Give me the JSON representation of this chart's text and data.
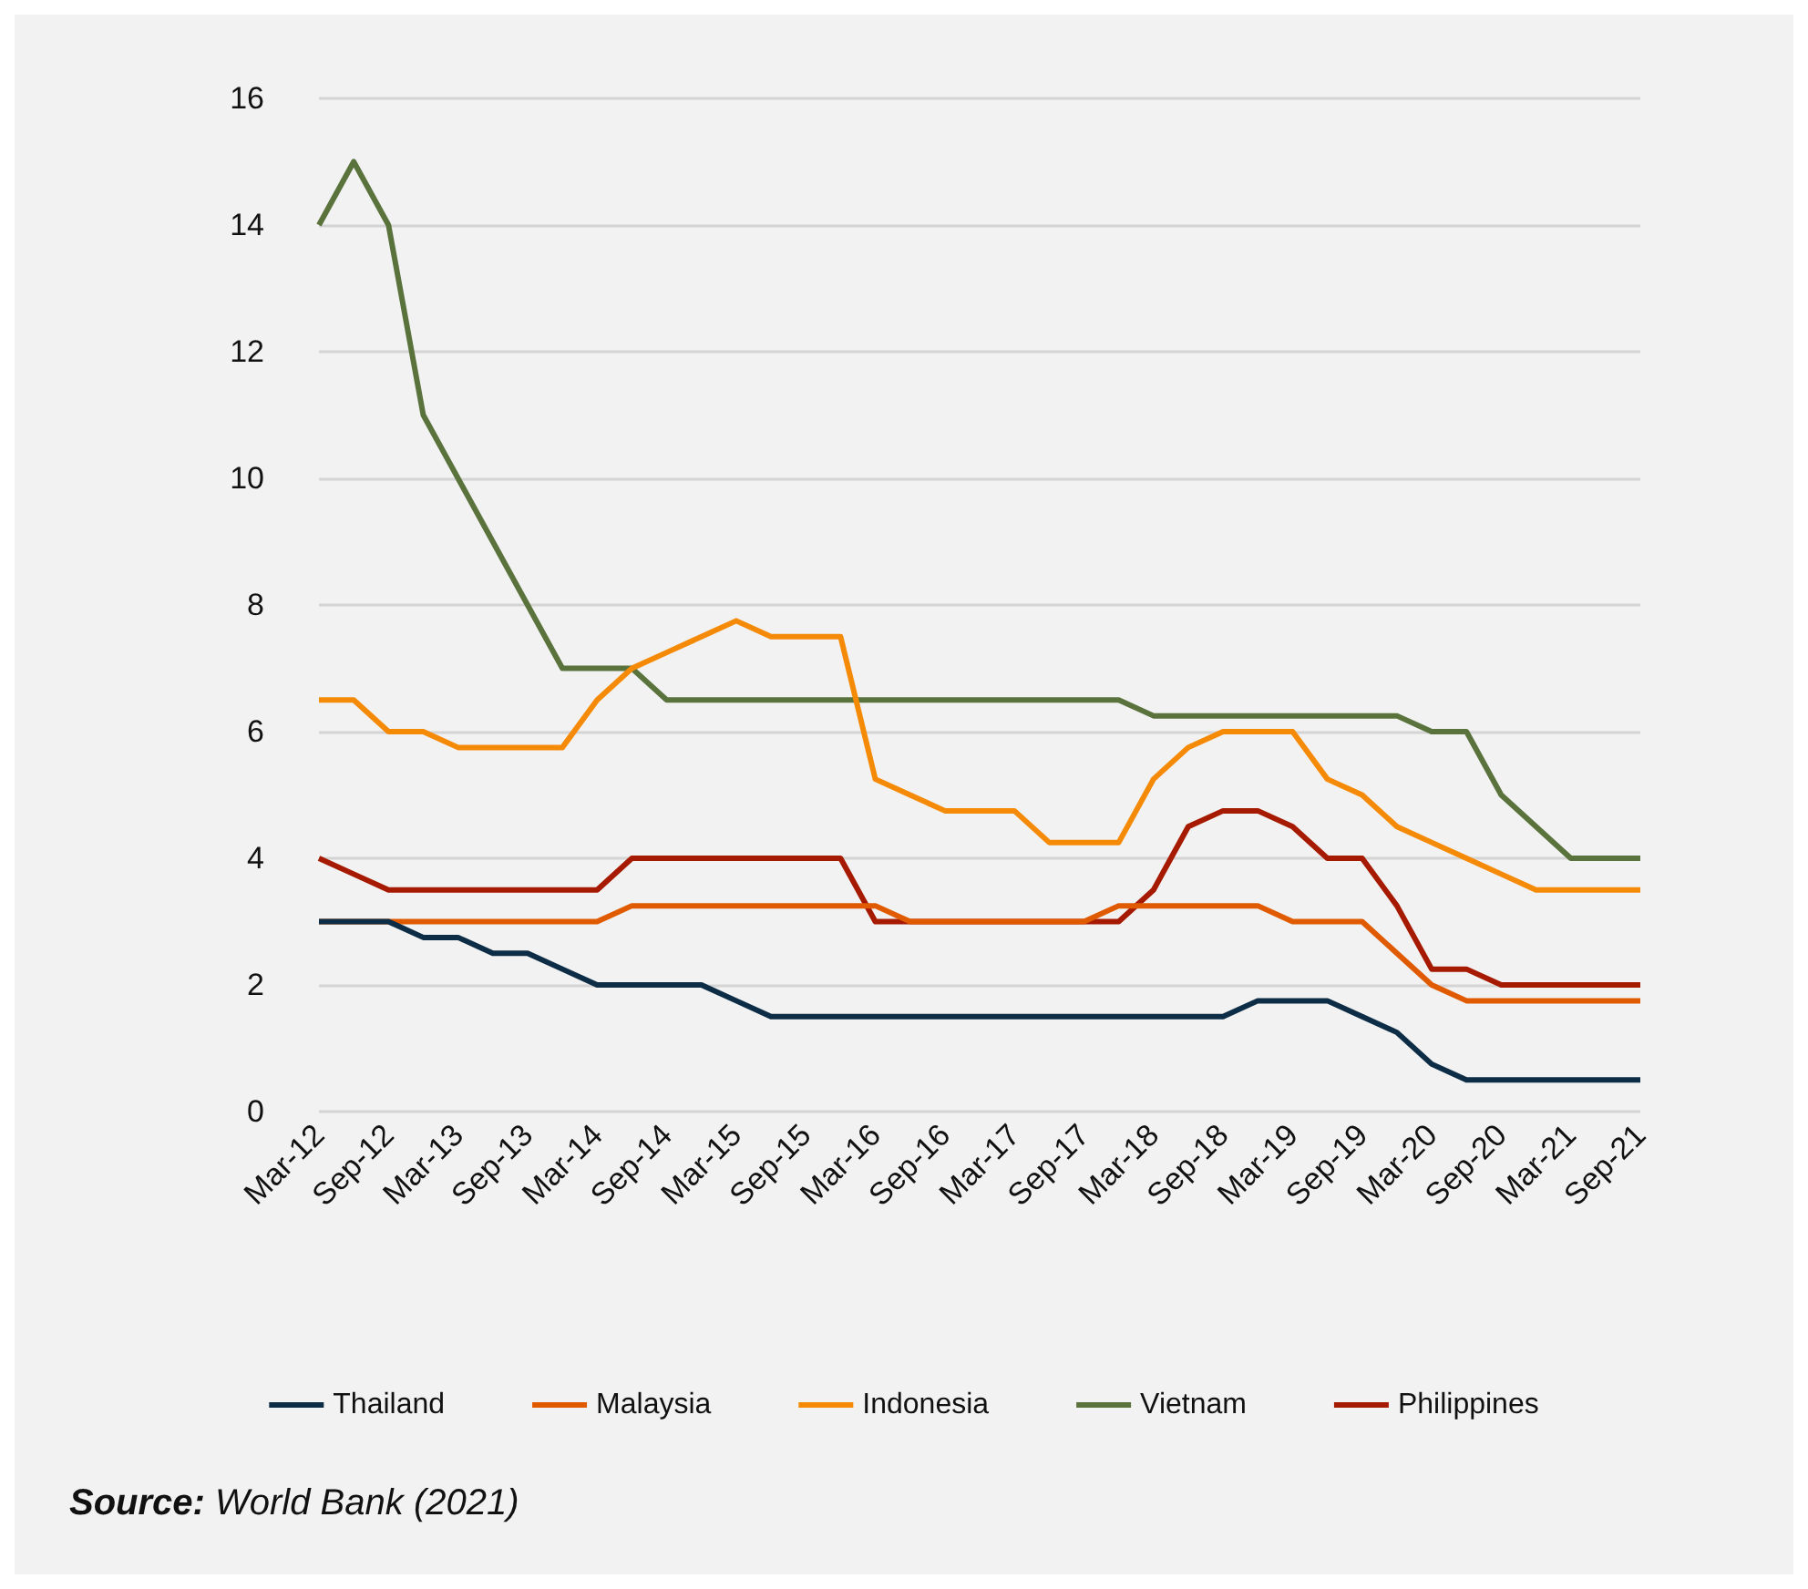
{
  "chart_data": {
    "type": "line",
    "categories": [
      "Mar-12",
      null,
      "Sep-12",
      null,
      "Mar-13",
      null,
      "Sep-13",
      null,
      "Mar-14",
      null,
      "Sep-14",
      null,
      "Mar-15",
      null,
      "Sep-15",
      null,
      "Mar-16",
      null,
      "Sep-16",
      null,
      "Mar-17",
      null,
      "Sep-17",
      null,
      "Mar-18",
      null,
      "Sep-18",
      null,
      "Mar-19",
      null,
      "Sep-19",
      null,
      "Mar-20",
      null,
      "Sep-20",
      null,
      "Mar-21",
      null,
      "Sep-21"
    ],
    "series": [
      {
        "name": "Thailand",
        "color": "#0d2c45",
        "values": [
          3,
          3,
          3,
          2.75,
          2.75,
          2.5,
          2.5,
          2.25,
          2,
          2,
          2,
          2,
          1.75,
          1.5,
          1.5,
          1.5,
          1.5,
          1.5,
          1.5,
          1.5,
          1.5,
          1.5,
          1.5,
          1.5,
          1.5,
          1.5,
          1.5,
          1.75,
          1.75,
          1.75,
          1.5,
          1.25,
          0.75,
          0.5,
          0.5,
          0.5,
          0.5,
          0.5,
          0.5
        ]
      },
      {
        "name": "Malaysia",
        "color": "#e05a00",
        "values": [
          3,
          3,
          3,
          3,
          3,
          3,
          3,
          3,
          3,
          3.25,
          3.25,
          3.25,
          3.25,
          3.25,
          3.25,
          3.25,
          3.25,
          3,
          3,
          3,
          3,
          3,
          3,
          3.25,
          3.25,
          3.25,
          3.25,
          3.25,
          3,
          3,
          3,
          2.5,
          2,
          1.75,
          1.75,
          1.75,
          1.75,
          1.75,
          1.75
        ]
      },
      {
        "name": "Indonesia",
        "color": "#f58a07",
        "values": [
          6.5,
          6.5,
          6,
          6,
          5.75,
          5.75,
          5.75,
          5.75,
          6.5,
          7,
          7.25,
          7.5,
          7.75,
          7.5,
          7.5,
          7.5,
          5.25,
          5,
          4.75,
          4.75,
          4.75,
          4.25,
          4.25,
          4.25,
          5.25,
          5.75,
          6,
          6,
          6,
          5.25,
          5,
          4.5,
          4.25,
          4,
          3.75,
          3.5,
          3.5,
          3.5,
          3.5
        ]
      },
      {
        "name": "Vietnam",
        "color": "#5a733d",
        "values": [
          14,
          15,
          14,
          11,
          10,
          9,
          8,
          7,
          7,
          7,
          6.5,
          6.5,
          6.5,
          6.5,
          6.5,
          6.5,
          6.5,
          6.5,
          6.5,
          6.5,
          6.5,
          6.5,
          6.5,
          6.5,
          6.25,
          6.25,
          6.25,
          6.25,
          6.25,
          6.25,
          6.25,
          6.25,
          6,
          6,
          5,
          4.5,
          4,
          4,
          4
        ]
      },
      {
        "name": "Philippines",
        "color": "#a51a00",
        "values": [
          4,
          3.75,
          3.5,
          3.5,
          3.5,
          3.5,
          3.5,
          3.5,
          3.5,
          4,
          4,
          4,
          4,
          4,
          4,
          4,
          3,
          3,
          3,
          3,
          3,
          3,
          3,
          3,
          3.5,
          4.5,
          4.75,
          4.75,
          4.5,
          4,
          4,
          3.25,
          2.25,
          2.25,
          2,
          2,
          2,
          2,
          2
        ]
      }
    ],
    "ylim": [
      0,
      16
    ],
    "yticks": [
      0,
      2,
      4,
      6,
      8,
      10,
      12,
      14,
      16
    ],
    "grid": "y",
    "legend": "bottom",
    "marker": "none",
    "line_style": "solid",
    "annotations": [
      "Source: World Bank (2021)"
    ]
  }
}
